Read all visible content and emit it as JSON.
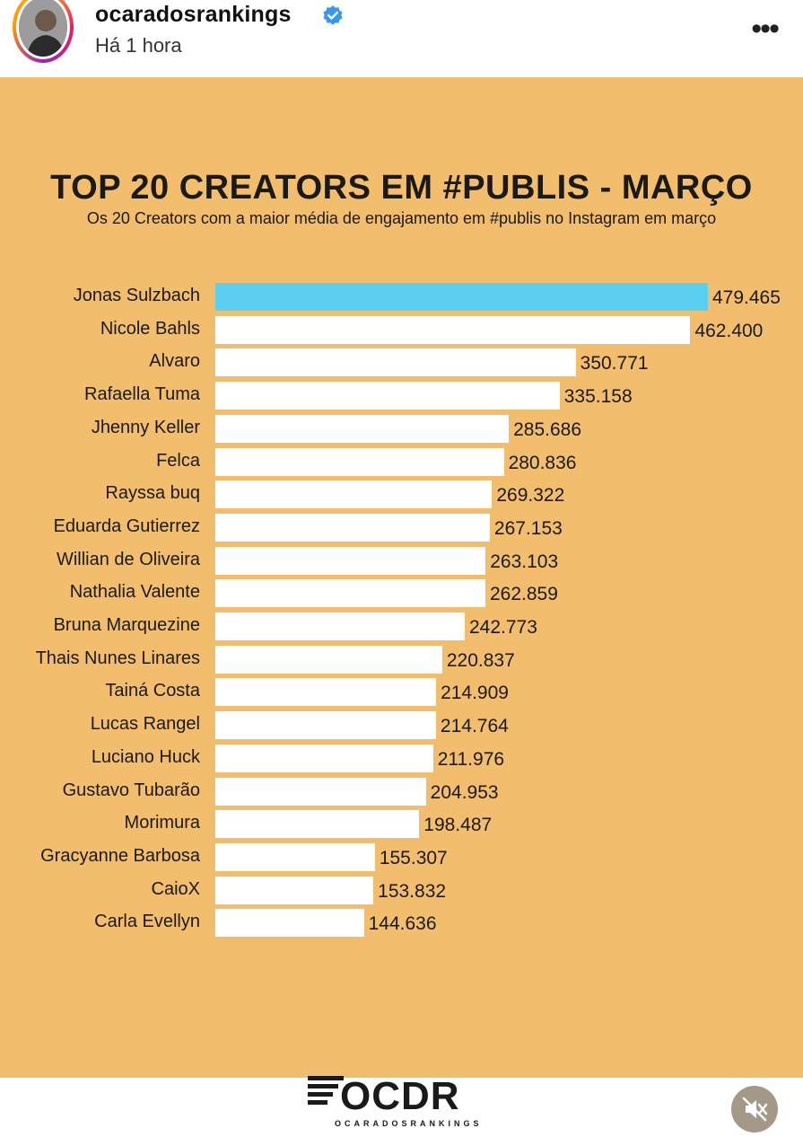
{
  "header": {
    "username": "ocaradosrankings",
    "time": "Há 1 hora",
    "more_label": "•••"
  },
  "post": {
    "title": "TOP 20 CREATORS EM #PUBLIS - MARÇO",
    "subtitle": "Os 20 Creators com a maior média de engajamento em #publis no Instagram em março",
    "logo_text": "OCDR",
    "logo_sub": "OCARADOSRANKINGS"
  },
  "colors": {
    "background": "#f2bd6c",
    "bar": "#ffffff",
    "highlight": "#5bcfef"
  },
  "chart_data": {
    "type": "bar",
    "orientation": "horizontal",
    "categories": [
      "Jonas Sulzbach",
      "Nicole Bahls",
      "Alvaro",
      "Rafaella Tuma",
      "Jhenny Keller",
      "Felca",
      "Rayssa buq",
      "Eduarda Gutierrez",
      "Willian de Oliveira",
      "Nathalia Valente",
      "Bruna Marquezine",
      "Thais Nunes Linares",
      "Tainá Costa",
      "Lucas Rangel",
      "Luciano Huck",
      "Gustavo Tubarão",
      "Morimura",
      "Gracyanne Barbosa",
      "CaioX",
      "Carla Evellyn"
    ],
    "values": [
      479465,
      462400,
      350771,
      335158,
      285686,
      280836,
      269322,
      267153,
      263103,
      262859,
      242773,
      220837,
      214909,
      214764,
      211976,
      204953,
      198487,
      155307,
      153832,
      144636
    ],
    "labels": [
      "479.465",
      "462.400",
      "350.771",
      "335.158",
      "285.686",
      "280.836",
      "269.322",
      "267.153",
      "263.103",
      "262.859",
      "242.773",
      "220.837",
      "214.909",
      "214.764",
      "211.976",
      "204.953",
      "198.487",
      "155.307",
      "153.832",
      "144.636"
    ],
    "highlight_index": 0,
    "title": "TOP 20 CREATORS EM #PUBLIS - MARÇO",
    "subtitle": "Os 20 Creators com a maior média de engajamento em #publis no Instagram em março"
  }
}
